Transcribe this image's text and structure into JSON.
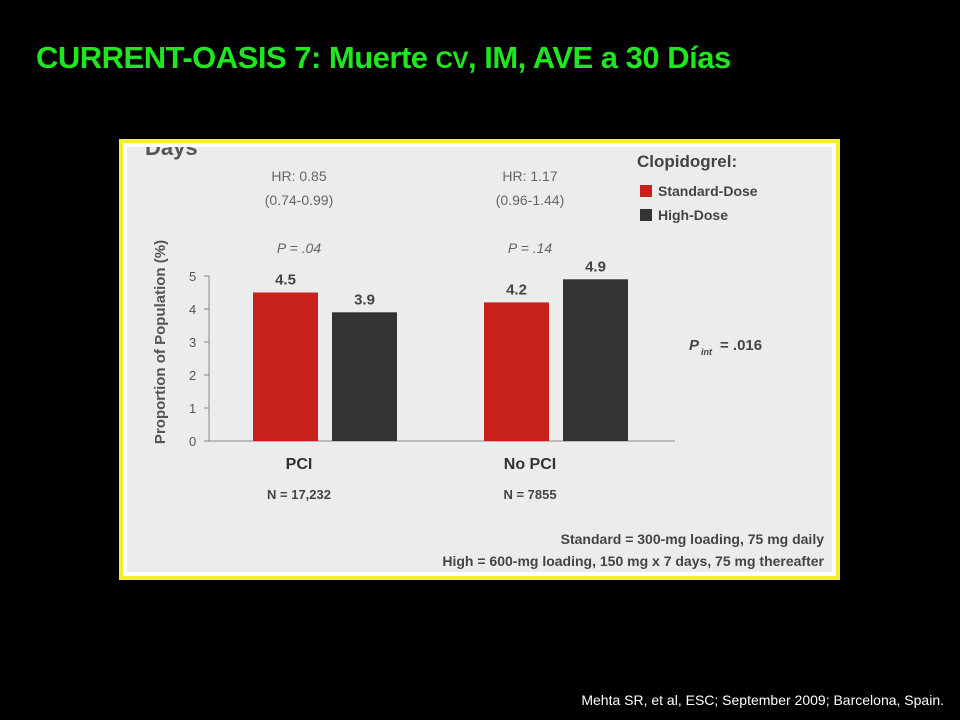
{
  "slide": {
    "title_main": "CURRENT-OASIS 7: Muerte ",
    "title_smallcaps": "CV",
    "title_rest": ", IM, AVE a 30 Días",
    "citation": "Mehta SR, et al, ESC; September 2009; Barcelona, Spain."
  },
  "colors": {
    "title": "#1fe61f",
    "frame": "#f4ee2a",
    "standard_dose": "#c8201a",
    "high_dose": "#333333",
    "chart_bg": "#ececec"
  },
  "chart_data": {
    "type": "bar",
    "partial_title": "Days",
    "categories": [
      "PCI",
      "No PCI"
    ],
    "category_n": [
      "N = 17,232",
      "N = 7855"
    ],
    "hr": [
      "HR: 0.85",
      "HR: 1.17"
    ],
    "ci": [
      "(0.74-0.99)",
      "(0.96-1.44)"
    ],
    "p_values": [
      "P = .04",
      "P = .14"
    ],
    "series": [
      {
        "name": "Standard-Dose",
        "values": [
          4.5,
          4.2
        ],
        "labels": [
          "4.5",
          "4.2"
        ]
      },
      {
        "name": "High-Dose",
        "values": [
          3.9,
          4.9
        ],
        "labels": [
          "3.9",
          "4.9"
        ]
      }
    ],
    "legend_title": "Clopidogrel:",
    "legend_position": "top-right",
    "ylabel": "Proportion of Population (%)",
    "ylim": [
      0,
      5
    ],
    "yticks": [
      "0",
      "1",
      "2",
      "3",
      "4",
      "5"
    ],
    "p_int_label": "P",
    "p_int_sub": "int",
    "p_int_value": "= .016",
    "footnotes": [
      "Standard = 300-mg loading, 75 mg daily",
      "High = 600-mg loading, 150 mg x 7 days, 75 mg thereafter"
    ],
    "grid": false
  }
}
